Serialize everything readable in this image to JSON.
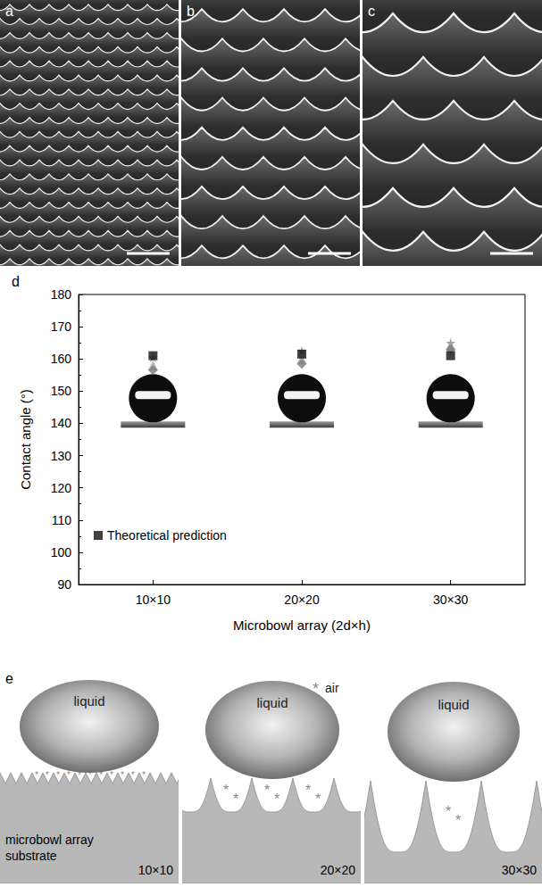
{
  "sem_panels": [
    {
      "label": "a"
    },
    {
      "label": "b"
    },
    {
      "label": "c"
    }
  ],
  "chart_panel": {
    "label": "d"
  },
  "chart_data": {
    "type": "scatter",
    "x_label": "Microbowl array (2d×h)",
    "y_label": "Contact angle (°)",
    "categories": [
      "10×10",
      "20×20",
      "30×30"
    ],
    "ylim": [
      90,
      180
    ],
    "yticks": [
      90,
      100,
      110,
      120,
      130,
      140,
      150,
      160,
      170,
      180
    ],
    "grid": false,
    "legend": "lower left",
    "series": [
      {
        "color": "#8c8c8c",
        "marker": "star",
        "values": [
          160.5,
          162.5,
          165
        ]
      },
      {
        "color": "#a6a6a6",
        "marker": "triangle",
        "values": [
          158,
          160,
          164
        ]
      },
      {
        "color": "#7a7a7a",
        "marker": "diamond",
        "values": [
          156.5,
          158.5,
          163
        ]
      },
      {
        "name": "Theoretical prediction",
        "color": "#111111",
        "marker": "square",
        "values": [
          161,
          161.5,
          161
        ]
      }
    ]
  },
  "schematic": {
    "label": "e",
    "liquid_label": "liquid",
    "air_symbol": "*",
    "air_label": "air",
    "substrate_label": "microbowl array substrate",
    "arrays": [
      "10×10",
      "20×20",
      "30×30"
    ]
  }
}
